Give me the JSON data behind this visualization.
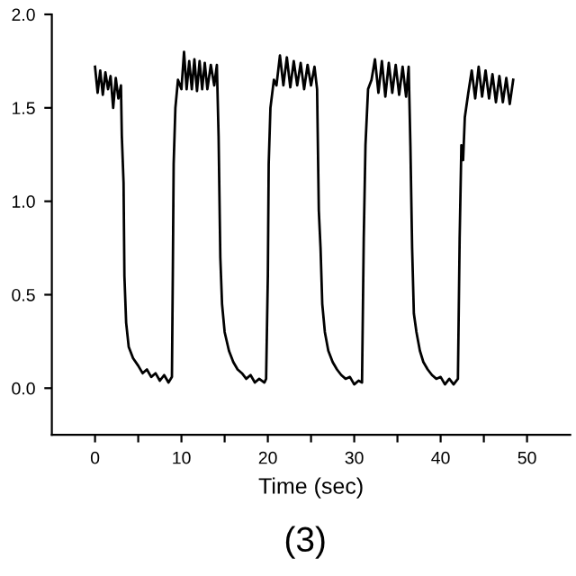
{
  "chart_data": {
    "type": "line",
    "xlabel": "Time (sec)",
    "annotations": [
      "(3)"
    ],
    "xlim": [
      -5,
      55
    ],
    "ylim": [
      -0.25,
      2.0
    ],
    "xticks": [
      0,
      {
        "value": 5,
        "label": null
      },
      10,
      {
        "value": 15,
        "label": null
      },
      20,
      {
        "value": 25,
        "label": null
      },
      30,
      {
        "value": 35,
        "label": null
      },
      40,
      {
        "value": 45,
        "label": null
      },
      50
    ],
    "yticks": [
      {
        "value": 0,
        "label": "0.0"
      },
      {
        "value": 0.5,
        "label": "0.5"
      },
      {
        "value": 1,
        "label": "1.0"
      },
      {
        "value": 1.5,
        "label": "1.5"
      },
      {
        "value": 2,
        "label": "2.0"
      }
    ],
    "grid": false,
    "legend": false,
    "marker": "none",
    "line_style": "solid",
    "series": [
      {
        "color": "#000000",
        "x": [
          0,
          0.3,
          0.6,
          0.9,
          1.2,
          1.5,
          1.8,
          2.1,
          2.4,
          2.7,
          3.0,
          3.1,
          3.3,
          3.4,
          3.6,
          3.9,
          4.4,
          5,
          5.5,
          6,
          6.5,
          7,
          7.5,
          8,
          8.5,
          8.9,
          9.0,
          9.1,
          9.3,
          9.6,
          10,
          10.3,
          10.6,
          10.9,
          11.2,
          11.5,
          11.8,
          12.1,
          12.4,
          12.7,
          13,
          13.4,
          13.8,
          14.1,
          14.3,
          14.5,
          14.7,
          15,
          15.5,
          16,
          16.5,
          17,
          17.5,
          18,
          18.5,
          19,
          19.6,
          19.8,
          20,
          20.1,
          20.3,
          20.7,
          21,
          21.4,
          21.8,
          22.2,
          22.6,
          23,
          23.4,
          23.8,
          24.2,
          24.6,
          25,
          25.4,
          25.7,
          25.9,
          26.1,
          26.3,
          26.6,
          27,
          27.5,
          28,
          28.5,
          29,
          29.5,
          30,
          30.5,
          30.9,
          31.1,
          31.3,
          31.6,
          32,
          32.4,
          32.8,
          33.2,
          33.6,
          34,
          34.4,
          34.8,
          35.2,
          35.6,
          36,
          36.3,
          36.5,
          36.7,
          36.9,
          37.2,
          37.6,
          38,
          38.5,
          39,
          39.5,
          40,
          40.5,
          41,
          41.5,
          42,
          42.2,
          42.4,
          42.6,
          42.8,
          43.2,
          43.6,
          44,
          44.4,
          44.8,
          45.2,
          45.6,
          46,
          46.4,
          46.8,
          47.2,
          47.6,
          48,
          48.4
        ],
        "values": [
          1.72,
          1.58,
          1.7,
          1.57,
          1.69,
          1.6,
          1.67,
          1.5,
          1.66,
          1.55,
          1.62,
          1.35,
          1.1,
          0.6,
          0.35,
          0.22,
          0.16,
          0.12,
          0.08,
          0.1,
          0.06,
          0.08,
          0.04,
          0.07,
          0.03,
          0.06,
          0.6,
          1.2,
          1.5,
          1.65,
          1.6,
          1.8,
          1.6,
          1.75,
          1.6,
          1.76,
          1.59,
          1.75,
          1.6,
          1.74,
          1.6,
          1.73,
          1.62,
          1.73,
          1.35,
          0.7,
          0.45,
          0.3,
          0.2,
          0.14,
          0.1,
          0.08,
          0.05,
          0.07,
          0.03,
          0.05,
          0.03,
          0.05,
          0.6,
          1.2,
          1.5,
          1.65,
          1.62,
          1.78,
          1.62,
          1.77,
          1.61,
          1.75,
          1.62,
          1.74,
          1.6,
          1.73,
          1.62,
          1.72,
          1.6,
          0.95,
          0.75,
          0.45,
          0.3,
          0.2,
          0.14,
          0.1,
          0.07,
          0.05,
          0.06,
          0.02,
          0.04,
          0.03,
          0.8,
          1.3,
          1.6,
          1.65,
          1.76,
          1.58,
          1.75,
          1.56,
          1.74,
          1.58,
          1.73,
          1.57,
          1.72,
          1.56,
          1.72,
          1.3,
          0.75,
          0.4,
          0.3,
          0.2,
          0.14,
          0.1,
          0.07,
          0.05,
          0.06,
          0.02,
          0.05,
          0.02,
          0.05,
          0.8,
          1.3,
          1.22,
          1.45,
          1.58,
          1.7,
          1.55,
          1.72,
          1.56,
          1.7,
          1.55,
          1.68,
          1.53,
          1.67,
          1.53,
          1.66,
          1.52,
          1.65
        ]
      }
    ]
  }
}
